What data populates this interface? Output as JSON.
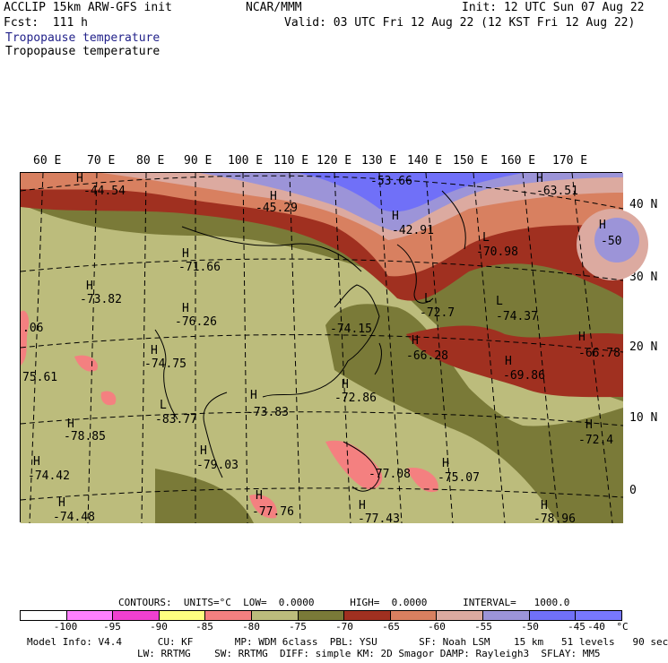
{
  "header": {
    "model": "ACCLIP 15km ARW-GFS init",
    "center": "NCAR/MMM",
    "init": "Init: 12 UTC Sun 07 Aug 22",
    "fcst": "Fcst:  111 h",
    "valid": "Valid: 03 UTC Fri 12 Aug 22 (12 KST Fri 12 Aug 22)",
    "field_title_1": "Tropopause temperature",
    "field_title_2": "Tropopause temperature"
  },
  "map": {
    "lon_labels": [
      "60 E",
      "70 E",
      "80 E",
      "90 E",
      "100 E",
      "110 E",
      "120 E",
      "130 E",
      "140 E",
      "150 E",
      "160 E",
      "170 E"
    ],
    "lat_labels": [
      "40 N",
      "30 N",
      "20 N",
      "10 N",
      "0"
    ],
    "extrema": [
      {
        "mark": "H",
        "value": "-44.54"
      },
      {
        "mark": "H",
        "value": "-45.29"
      },
      {
        "mark": "",
        "value": "-53.66"
      },
      {
        "mark": "H",
        "value": "-63.51"
      },
      {
        "mark": "H",
        "value": "-42.91"
      },
      {
        "mark": "H",
        "value": "-50"
      },
      {
        "mark": "L",
        "value": "-70.98"
      },
      {
        "mark": "H",
        "value": "-71.66"
      },
      {
        "mark": "H",
        "value": "-73.82"
      },
      {
        "mark": "H",
        "value": "-76.26"
      },
      {
        "mark": "",
        "value": ".06"
      },
      {
        "mark": "L",
        "value": "-72.7"
      },
      {
        "mark": "L",
        "value": "-74.37"
      },
      {
        "mark": "",
        "value": "-74.15"
      },
      {
        "mark": "H",
        "value": "-66.28"
      },
      {
        "mark": "H",
        "value": "-66.78"
      },
      {
        "mark": "H",
        "value": "-74.75"
      },
      {
        "mark": "H",
        "value": "-69.86"
      },
      {
        "mark": "",
        "value": "75.61"
      },
      {
        "mark": "H",
        "value": "-72.86"
      },
      {
        "mark": "H",
        "value": "-73.83"
      },
      {
        "mark": "L",
        "value": "-83.77"
      },
      {
        "mark": "H",
        "value": "-72.4"
      },
      {
        "mark": "H",
        "value": "-78.85"
      },
      {
        "mark": "H",
        "value": "-74.42"
      },
      {
        "mark": "H",
        "value": "-79.03"
      },
      {
        "mark": "",
        "value": "-77.08"
      },
      {
        "mark": "H",
        "value": "-75.07"
      },
      {
        "mark": "H",
        "value": "-74.48"
      },
      {
        "mark": "H",
        "value": "-77.76"
      },
      {
        "mark": "H",
        "value": "-77.43"
      },
      {
        "mark": "H",
        "value": "-78.96"
      }
    ],
    "colors": {
      "lt_neg100": "#ffffff",
      "neg100_95": "#ff80ff",
      "neg95_90": "#f040d0",
      "neg90_85": "#ffff80",
      "neg85_80": "#f48080",
      "neg80_75": "#bcbc7c",
      "neg75_70": "#7a7a38",
      "neg70_65": "#a03020",
      "neg65_60": "#d88060",
      "neg60_55": "#dcaaa0",
      "neg55_50": "#9c94d8",
      "neg50_45": "#7070f8",
      "gt_neg45": "#7878ff"
    }
  },
  "footer": {
    "contours": "CONTOURS:  UNITS=°C  LOW=  0.0000      HIGH=  0.0000      INTERVAL=   1000.0",
    "colorbar_labels": [
      "-100",
      "-95",
      "-90",
      "-85",
      "-80",
      "-75",
      "-70",
      "-65",
      "-60",
      "-55",
      "-50",
      "-45",
      "-40",
      "°C"
    ],
    "model_info_1": "Model Info: V4.4      CU: KF       MP: WDM 6class  PBL: YSU       SF: Noah LSM    15 km   51 levels   90 sec",
    "model_info_2": "LW: RRTMG    SW: RRTMG  DIFF: simple KM: 2D Smagor DAMP: Rayleigh3  SFLAY: MM5"
  }
}
